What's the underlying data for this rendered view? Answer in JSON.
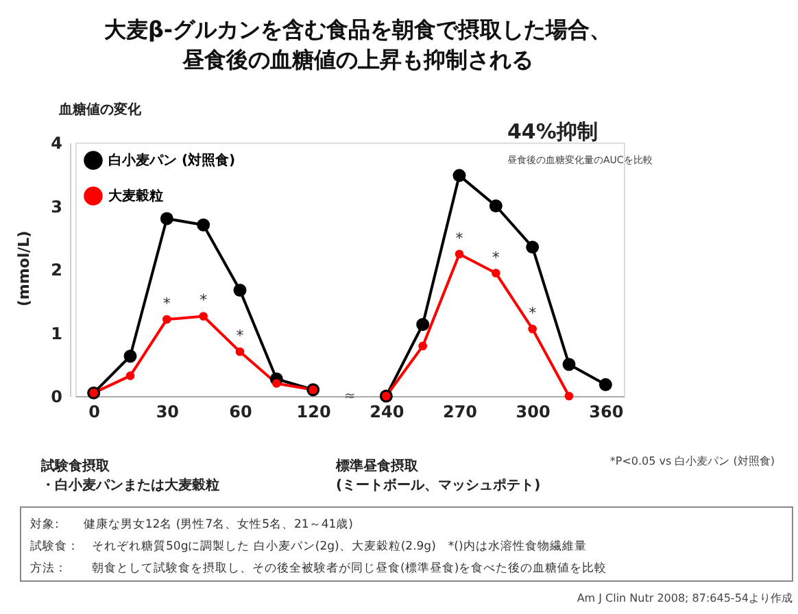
{
  "chart_data": {
    "type": "line",
    "title": "大麦β-グルカンを含む食品を朝食で摂取した場合、",
    "subtitle": "昼食後の血糖値の上昇も抑制される",
    "ylabel": "(mmol/L)",
    "categories": [
      "0",
      null,
      "30",
      null,
      "60",
      null,
      "120",
      null,
      "240",
      null,
      "270",
      null,
      "300",
      null,
      "360"
    ],
    "series": [
      {
        "name": "白小麦パン (対照食)",
        "color": "#000000",
        "values": [
          0.05,
          0.63,
          2.8,
          2.7,
          1.67,
          0.27,
          0.1,
          null,
          0,
          1.13,
          3.48,
          3.0,
          2.35,
          0.5,
          0.18
        ]
      },
      {
        "name": "大麦穀粒",
        "color": "#ff0000",
        "values": [
          0.05,
          0.32,
          1.21,
          1.26,
          0.7,
          0.2,
          0.1,
          null,
          0,
          0.79,
          2.24,
          1.94,
          1.06,
          0,
          null
        ],
        "value_labels": [
          null,
          null,
          "*",
          "*",
          "*",
          null,
          null,
          null,
          null,
          null,
          "*",
          "*",
          "*",
          null,
          null
        ]
      }
    ],
    "ylim": [
      0,
      4
    ],
    "yticks": [
      0,
      1,
      2,
      3,
      4
    ],
    "grid": false,
    "legend": "top left",
    "marker": "circle",
    "line_style": "solid",
    "annotations": [
      "血糖値の変化",
      "≈",
      "44%抑制",
      "昼食後の血糖変化量のAUCを比較",
      "試験食摂取",
      "・白小麦パンまたは大麦穀粒",
      "標準昼食摂取",
      "(ミートボール、マッシュポテト)",
      "*P<0.05 vs 白小麦パン (対照食)",
      "対象:　　健康な男女12名 (男性7名、女性5名、21～41歳)",
      "試験食：　それぞれ糖質50gに調製した 白小麦パン(2g)、大麦穀粒(2.9g)　*()内は水溶性食物繊維量",
      "方法：　　朝食として試験食を摂取し、その後全被験者が同じ昼食(標準昼食)を食べた後の血糖値を比較",
      "Am J Clin Nutr 2008; 87:645-54より作成"
    ]
  }
}
